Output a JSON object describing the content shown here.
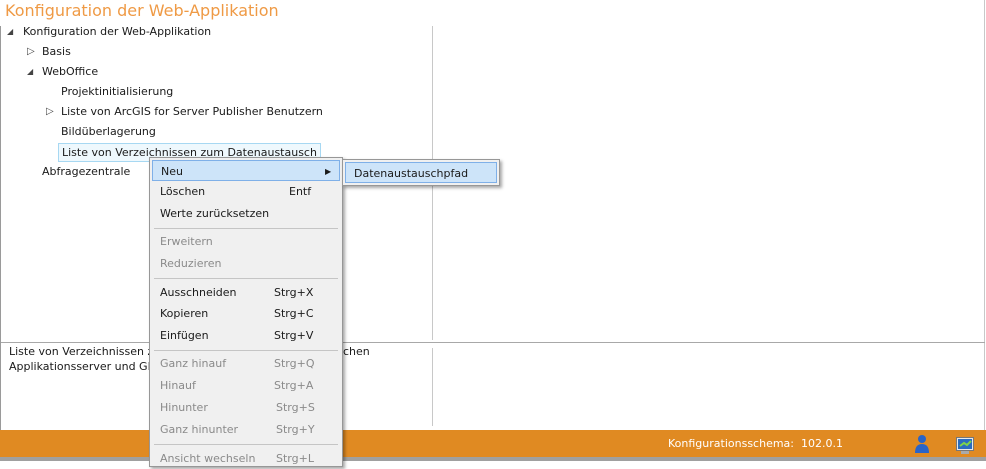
{
  "title": "Konfiguration der Web-Applikation",
  "tree": {
    "root": "Konfiguration der Web-Applikation",
    "basis": "Basis",
    "weboffice": "WebOffice",
    "projekt": "Projektinitialisierung",
    "arcgis": "Liste von ArcGIS for Server Publisher Benutzern",
    "bild": "Bildüberlagerung",
    "liste": "Liste von Verzeichnissen zum Datenaustausch",
    "abfrage": "Abfragezentrale"
  },
  "description": {
    "line1a": "Liste von Verzeichnissen zum",
    "line1b": "chen",
    "line2": "Applikationsserver und GIS-"
  },
  "context_menu": {
    "items": [
      {
        "label": "Neu",
        "shortcut": "",
        "enabled": true,
        "submenu": true
      },
      {
        "label": "Löschen",
        "shortcut": "Entf",
        "enabled": true
      },
      {
        "label": "Werte zurücksetzen",
        "shortcut": "",
        "enabled": true
      },
      {
        "label": "Erweitern",
        "shortcut": "",
        "enabled": false
      },
      {
        "label": "Reduzieren",
        "shortcut": "",
        "enabled": false
      },
      {
        "label": "Ausschneiden",
        "shortcut": "Strg+X",
        "enabled": true
      },
      {
        "label": "Kopieren",
        "shortcut": "Strg+C",
        "enabled": true
      },
      {
        "label": "Einfügen",
        "shortcut": "Strg+V",
        "enabled": true
      },
      {
        "label": "Ganz hinauf",
        "shortcut": "Strg+Q",
        "enabled": false
      },
      {
        "label": "Hinauf",
        "shortcut": "Strg+A",
        "enabled": false
      },
      {
        "label": "Hinunter",
        "shortcut": "Strg+S",
        "enabled": false
      },
      {
        "label": "Ganz hinunter",
        "shortcut": "Strg+Y",
        "enabled": false
      },
      {
        "label": "Ansicht wechseln",
        "shortcut": "Strg+L",
        "enabled": false
      }
    ],
    "submenu_arrow": "▶"
  },
  "submenu": {
    "item": "Datenaustauschpfad"
  },
  "status": {
    "schema_label": "Konfigurationsschema:",
    "schema_value": "102.0.1",
    "icons": [
      "user-icon",
      "monitor-icon"
    ],
    "color": "#e08a22"
  },
  "glyphs": {
    "expanded": "◢",
    "collapsed": "▷"
  }
}
